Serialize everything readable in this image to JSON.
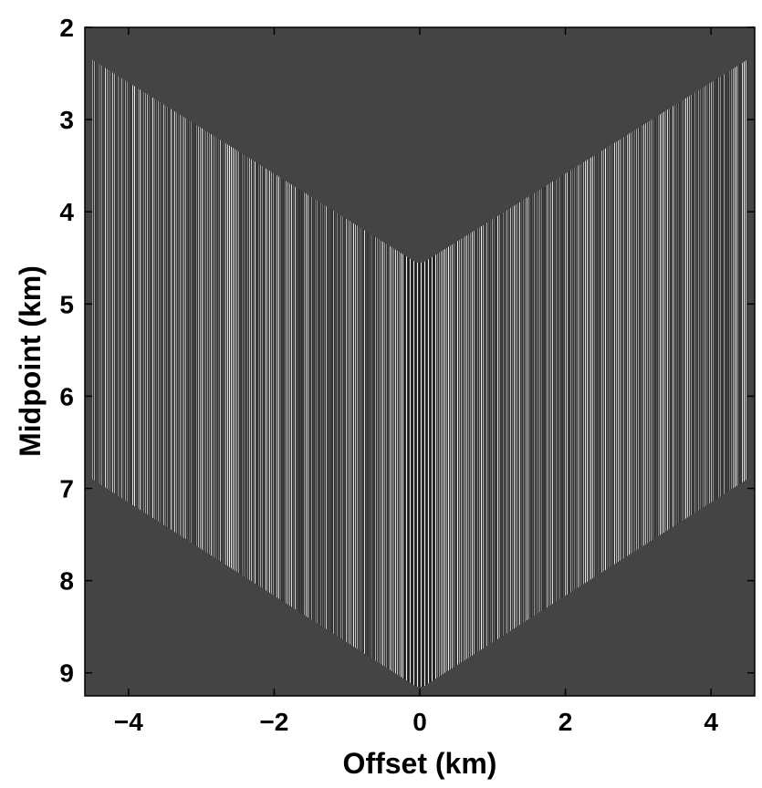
{
  "chart_data": {
    "type": "heatmap",
    "title": "",
    "xlabel": "Offset (km)",
    "ylabel": "Midpoint (km)",
    "xlim": [
      -4.6,
      4.6
    ],
    "ylim": [
      9.25,
      2.0
    ],
    "y_axis_inverted": true,
    "x_ticks": [
      -4,
      -2,
      0,
      2,
      4
    ],
    "x_tick_labels": [
      "−4",
      "−2",
      "0",
      "2",
      "4"
    ],
    "y_ticks": [
      2,
      3,
      4,
      5,
      6,
      7,
      8,
      9
    ],
    "y_tick_labels": [
      "2",
      "3",
      "4",
      "5",
      "6",
      "7",
      "8",
      "9"
    ],
    "grid": false,
    "colormap": "gray",
    "background_color": "#444444",
    "data_region_outline": [
      {
        "offset": -4.5,
        "midpoint": 2.35
      },
      {
        "offset": -0.05,
        "midpoint": 4.55
      },
      {
        "offset": 0.05,
        "midpoint": 4.55
      },
      {
        "offset": 4.5,
        "midpoint": 2.35
      },
      {
        "offset": 4.5,
        "midpoint": 6.9
      },
      {
        "offset": 0.05,
        "midpoint": 9.15
      },
      {
        "offset": -0.05,
        "midpoint": 9.15
      },
      {
        "offset": -4.5,
        "midpoint": 6.9
      }
    ]
  }
}
